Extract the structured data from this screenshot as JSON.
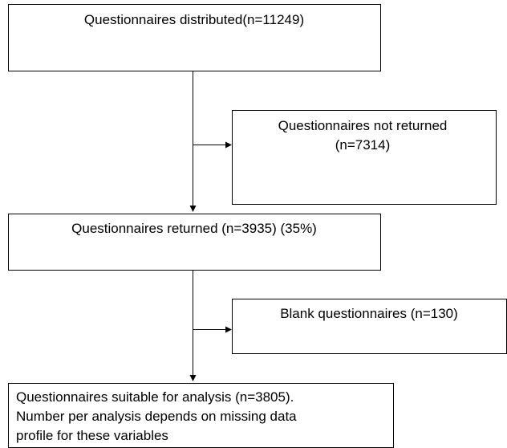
{
  "nodes": [
    {
      "lines": [
        "Questionnaires distributed(n=11249)"
      ]
    },
    {
      "lines": [
        "Questionnaires not returned",
        "(n=7314)"
      ]
    },
    {
      "lines": [
        "Questionnaires returned (n=3935) (35%)"
      ]
    },
    {
      "lines": [
        "Blank questionnaires (n=130)"
      ]
    },
    {
      "lines": [
        "Questionnaires suitable for analysis (n=3805).",
        "Number per analysis depends on missing data",
        "profile for these variables"
      ]
    }
  ]
}
